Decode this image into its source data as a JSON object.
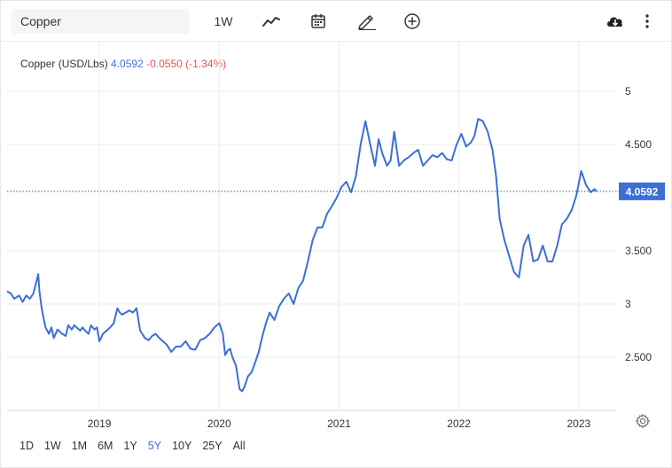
{
  "toolbar": {
    "search_value": "Copper",
    "interval_label": "1W",
    "icons": [
      "line-chart-icon",
      "calendar-icon",
      "pencil-icon",
      "plus-circle-icon",
      "cloud-download-icon",
      "more-vertical-icon"
    ]
  },
  "legend": {
    "name": "Copper (USD/Lbs)",
    "price": "4.0592",
    "change": "-0.0550",
    "change_pct": "(-1.34%)"
  },
  "ranges": {
    "items": [
      "1D",
      "1W",
      "1M",
      "6M",
      "1Y",
      "5Y",
      "10Y",
      "25Y",
      "All"
    ],
    "active": "5Y"
  },
  "colors": {
    "line": "#3b6fd8",
    "price_tag": "#3b6fd8",
    "positive": "#4a6fd8",
    "negative": "#e05757",
    "grid": "#ececec"
  },
  "chart_data": {
    "type": "line",
    "title": "",
    "xlabel": "",
    "ylabel": "",
    "x_range": [
      2018.23,
      2023.2
    ],
    "ylim": [
      2.0,
      5.5
    ],
    "x_ticks": [
      {
        "value": 2019,
        "label": "2019"
      },
      {
        "value": 2020,
        "label": "2020"
      },
      {
        "value": 2021,
        "label": "2021"
      },
      {
        "value": 2022,
        "label": "2022"
      },
      {
        "value": 2023,
        "label": "2023"
      }
    ],
    "y_ticks": [
      {
        "value": 2.5,
        "label": "2.500"
      },
      {
        "value": 3.0,
        "label": "3"
      },
      {
        "value": 3.5,
        "label": "3.500"
      },
      {
        "value": 4.5,
        "label": "4.500"
      },
      {
        "value": 5.0,
        "label": "5"
      }
    ],
    "last_price": {
      "value": 4.0592,
      "label": "4.0592"
    },
    "grid": true,
    "series": [
      {
        "x": [
          2018.23,
          2018.26,
          2018.29,
          2018.33,
          2018.36,
          2018.39,
          2018.42,
          2018.45,
          2018.49,
          2018.5,
          2018.52,
          2018.55,
          2018.58,
          2018.6,
          2018.62,
          2018.65,
          2018.67,
          2018.69,
          2018.72,
          2018.74,
          2018.77,
          2018.79,
          2018.81,
          2018.84,
          2018.86,
          2018.88,
          2018.91,
          2018.93,
          2018.96,
          2018.98,
          2019.0,
          2019.03,
          2019.06,
          2019.09,
          2019.12,
          2019.15,
          2019.17,
          2019.19,
          2019.22,
          2019.25,
          2019.28,
          2019.31,
          2019.34,
          2019.38,
          2019.41,
          2019.44,
          2019.47,
          2019.5,
          2019.53,
          2019.56,
          2019.6,
          2019.64,
          2019.68,
          2019.72,
          2019.76,
          2019.8,
          2019.84,
          2019.88,
          2019.92,
          2019.96,
          2020.0,
          2020.03,
          2020.05,
          2020.07,
          2020.09,
          2020.11,
          2020.14,
          2020.17,
          2020.19,
          2020.21,
          2020.24,
          2020.27,
          2020.3,
          2020.33,
          2020.36,
          2020.39,
          2020.42,
          2020.46,
          2020.5,
          2020.54,
          2020.58,
          2020.62,
          2020.66,
          2020.7,
          2020.74,
          2020.78,
          2020.82,
          2020.86,
          2020.9,
          2020.94,
          2020.98,
          2021.02,
          2021.06,
          2021.1,
          2021.14,
          2021.18,
          2021.22,
          2021.26,
          2021.3,
          2021.33,
          2021.36,
          2021.4,
          2021.43,
          2021.46,
          2021.5,
          2021.54,
          2021.58,
          2021.62,
          2021.66,
          2021.7,
          2021.74,
          2021.78,
          2021.82,
          2021.86,
          2021.9,
          2021.94,
          2021.98,
          2022.02,
          2022.06,
          2022.1,
          2022.13,
          2022.16,
          2022.2,
          2022.24,
          2022.28,
          2022.31,
          2022.34,
          2022.38,
          2022.42,
          2022.46,
          2022.5,
          2022.54,
          2022.58,
          2022.62,
          2022.66,
          2022.7,
          2022.74,
          2022.78,
          2022.82,
          2022.86,
          2022.9,
          2022.94,
          2022.98,
          2023.02,
          2023.06,
          2023.1,
          2023.13,
          2023.15
        ],
        "values": [
          3.12,
          3.1,
          3.05,
          3.08,
          3.02,
          3.08,
          3.05,
          3.1,
          3.28,
          3.12,
          2.95,
          2.78,
          2.72,
          2.78,
          2.68,
          2.76,
          2.74,
          2.72,
          2.7,
          2.8,
          2.76,
          2.8,
          2.78,
          2.75,
          2.78,
          2.75,
          2.72,
          2.8,
          2.76,
          2.78,
          2.65,
          2.72,
          2.75,
          2.78,
          2.82,
          2.96,
          2.92,
          2.9,
          2.92,
          2.94,
          2.92,
          2.96,
          2.75,
          2.68,
          2.66,
          2.7,
          2.72,
          2.68,
          2.65,
          2.62,
          2.55,
          2.6,
          2.6,
          2.65,
          2.58,
          2.57,
          2.66,
          2.68,
          2.72,
          2.78,
          2.82,
          2.72,
          2.52,
          2.56,
          2.58,
          2.5,
          2.42,
          2.2,
          2.18,
          2.22,
          2.32,
          2.36,
          2.45,
          2.55,
          2.7,
          2.82,
          2.92,
          2.85,
          2.98,
          3.05,
          3.1,
          3.0,
          3.15,
          3.22,
          3.4,
          3.6,
          3.72,
          3.72,
          3.85,
          3.92,
          4.0,
          4.1,
          4.15,
          4.05,
          4.2,
          4.5,
          4.72,
          4.5,
          4.3,
          4.55,
          4.42,
          4.3,
          4.35,
          4.62,
          4.3,
          4.35,
          4.38,
          4.42,
          4.45,
          4.3,
          4.35,
          4.4,
          4.38,
          4.42,
          4.36,
          4.35,
          4.5,
          4.6,
          4.48,
          4.52,
          4.58,
          4.74,
          4.72,
          4.62,
          4.45,
          4.2,
          3.8,
          3.6,
          3.45,
          3.3,
          3.25,
          3.55,
          3.65,
          3.4,
          3.42,
          3.55,
          3.4,
          3.4,
          3.55,
          3.75,
          3.8,
          3.88,
          4.02,
          4.25,
          4.12,
          4.05,
          4.08,
          4.0592
        ]
      }
    ]
  }
}
